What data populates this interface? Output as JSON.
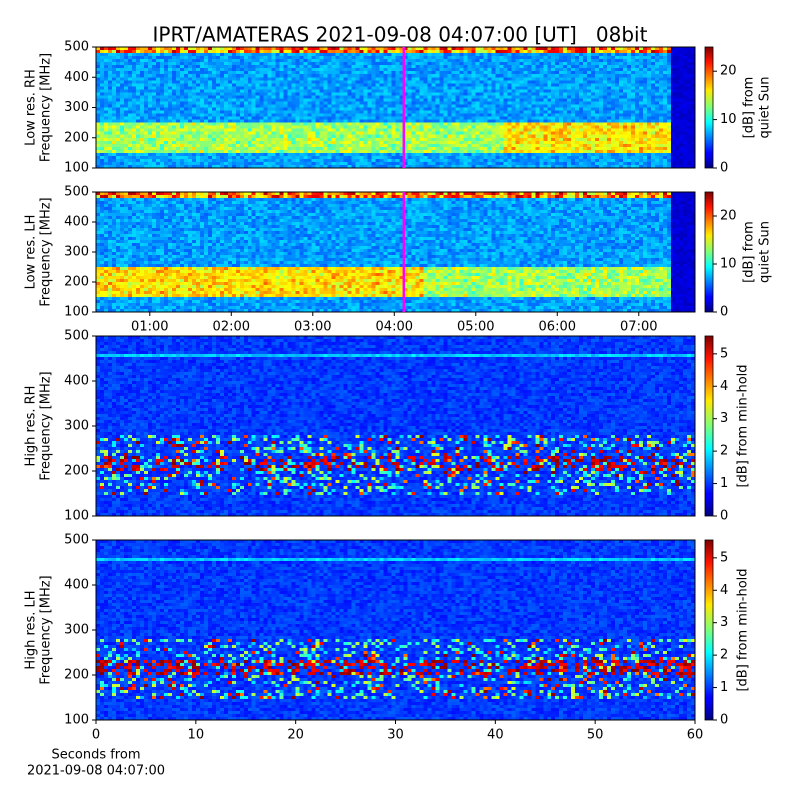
{
  "title": "IPRT/AMATERAS 2021-09-08 04:07:00 [UT]   08bit",
  "chart_data": [
    {
      "type": "spectrogram",
      "ylabel": [
        "Low res. RH",
        "Frequency [MHz]"
      ],
      "ylim": [
        100,
        500
      ],
      "yticks": [
        100,
        200,
        300,
        400,
        500
      ],
      "clim": [
        0,
        25
      ],
      "cticks": [
        0,
        10,
        20
      ],
      "clabel": [
        "[dB] from",
        "quiet Sun"
      ],
      "colormap": "jet",
      "xlim": [
        0.34,
        7.69
      ],
      "marker_x": 4.117,
      "marker_color": "#ff00ff"
    },
    {
      "type": "spectrogram",
      "ylabel": [
        "Low res. LH",
        "Frequency [MHz]"
      ],
      "ylim": [
        100,
        500
      ],
      "yticks": [
        100,
        200,
        300,
        400,
        500
      ],
      "clim": [
        0,
        25
      ],
      "cticks": [
        0,
        10,
        20
      ],
      "clabel": [
        "[dB] from",
        "quiet Sun"
      ],
      "colormap": "jet",
      "xlim": [
        0.34,
        7.69
      ],
      "marker_x": 4.117,
      "marker_color": "#ff00ff",
      "xticks": [
        {
          "value": 1,
          "label": "01:00"
        },
        {
          "value": 2,
          "label": "02:00"
        },
        {
          "value": 3,
          "label": "03:00"
        },
        {
          "value": 4,
          "label": "04:00"
        },
        {
          "value": 5,
          "label": "05:00"
        },
        {
          "value": 6,
          "label": "06:00"
        },
        {
          "value": 7,
          "label": "07:00"
        }
      ]
    },
    {
      "type": "spectrogram",
      "ylabel": [
        "High res. RH",
        "Frequency [MHz]"
      ],
      "ylim": [
        100,
        500
      ],
      "yticks": [
        100,
        200,
        300,
        400,
        500
      ],
      "clim": [
        0,
        5.55
      ],
      "cticks": [
        0,
        1,
        2,
        3,
        4,
        5
      ],
      "clabel": [
        "[dB] from min-hold"
      ],
      "colormap": "jet"
    },
    {
      "type": "spectrogram",
      "ylabel": [
        "High res. LH",
        "Frequency [MHz]"
      ],
      "ylim": [
        100,
        500
      ],
      "yticks": [
        100,
        200,
        300,
        400,
        500
      ],
      "clim": [
        0,
        5.55
      ],
      "cticks": [
        0,
        1,
        2,
        3,
        4,
        5
      ],
      "clabel": [
        "[dB] from min-hold"
      ],
      "colormap": "jet",
      "xlim": [
        0,
        60
      ],
      "xticks": [
        0,
        10,
        20,
        30,
        40,
        50,
        60
      ],
      "xlabel": [
        "Seconds from",
        "2021-09-08 04:07:00"
      ]
    }
  ]
}
